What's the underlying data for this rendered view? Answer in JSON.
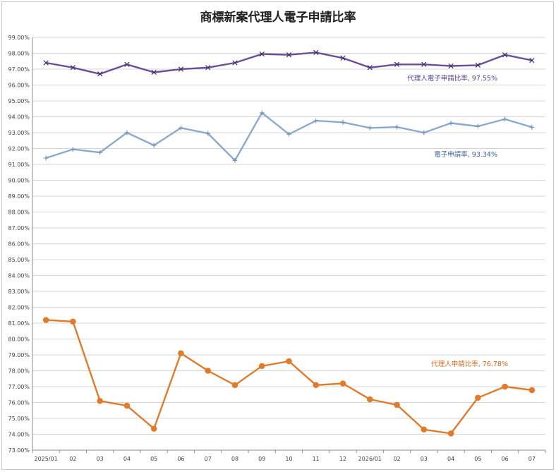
{
  "chart_data": {
    "type": "line",
    "title": "商標新案代理人電子申請比率",
    "categories": [
      "2025/01",
      "02",
      "03",
      "04",
      "05",
      "06",
      "07",
      "08",
      "09",
      "10",
      "11",
      "12",
      "2026/01",
      "02",
      "03",
      "04",
      "05",
      "06",
      "07"
    ],
    "ylim": [
      73,
      99
    ],
    "y_ticks": [
      "73.00%",
      "74.00%",
      "75.00%",
      "76.00%",
      "77.00%",
      "78.00%",
      "79.00%",
      "80.00%",
      "81.00%",
      "82.00%",
      "83.00%",
      "84.00%",
      "85.00%",
      "86.00%",
      "87.00%",
      "88.00%",
      "89.00%",
      "90.00%",
      "91.00%",
      "92.00%",
      "93.00%",
      "94.00%",
      "95.00%",
      "96.00%",
      "97.00%",
      "98.00%",
      "99.00%"
    ],
    "grid": true,
    "legend": "none",
    "series": [
      {
        "key": "agent_electronic",
        "color": "#6a4e9a",
        "marker": "x",
        "values": [
          97.4,
          97.1,
          96.7,
          97.3,
          96.8,
          97.0,
          97.1,
          97.4,
          97.95,
          97.9,
          98.05,
          97.7,
          97.1,
          97.3,
          97.3,
          97.2,
          97.25,
          97.9,
          97.55
        ],
        "annotation": "代理人電子申請比率, 97.55%"
      },
      {
        "key": "electronic",
        "color": "#8ea9cf",
        "marker": "plus",
        "values": [
          91.4,
          91.95,
          91.75,
          93.0,
          92.2,
          93.3,
          92.95,
          91.25,
          94.25,
          92.9,
          93.75,
          93.65,
          93.3,
          93.35,
          93.0,
          93.6,
          93.4,
          93.85,
          93.34
        ],
        "annotation": "電子申請率, 93.34%"
      },
      {
        "key": "agent_application",
        "color": "#e07b2b",
        "marker": "circle",
        "values": [
          81.2,
          81.1,
          76.1,
          75.8,
          74.35,
          79.1,
          78.0,
          77.1,
          78.3,
          78.6,
          77.1,
          77.2,
          76.2,
          75.85,
          74.3,
          74.05,
          76.3,
          77.0,
          76.78
        ],
        "annotation": "代理人申請比率, 76.78%"
      }
    ]
  }
}
